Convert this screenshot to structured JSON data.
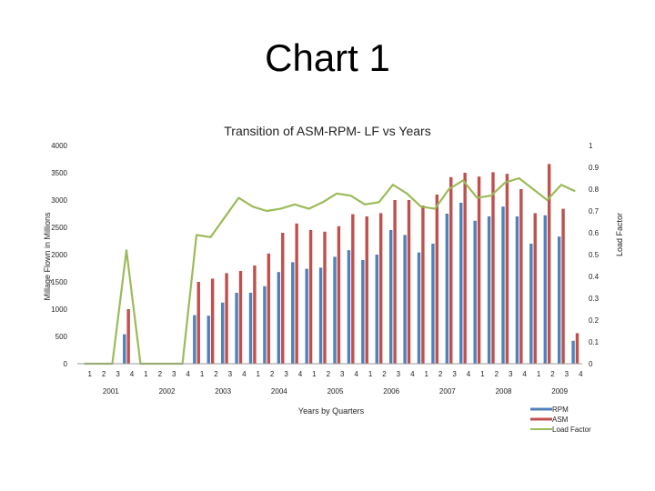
{
  "slide": {
    "title": "Chart 1"
  },
  "chart_data": {
    "type": "bar+line",
    "title": "Transition of ASM-RPM- LF vs Years",
    "xlabel": "Years by Quarters",
    "ylabel": "Millage Flown in Millions",
    "y2label": "Load Factor",
    "ylim": [
      0,
      4000
    ],
    "y2lim": [
      0,
      1
    ],
    "yticks": [
      "0",
      "500",
      "1000",
      "1500",
      "2000",
      "2500",
      "3000",
      "3500",
      "4000"
    ],
    "y2ticks": [
      "0",
      "0.1",
      "0.2",
      "0.3",
      "0.4",
      "0.5",
      "0.6",
      "0.7",
      "0.8",
      "0.9",
      "1"
    ],
    "quarters": [
      "1",
      "2",
      "3",
      "4",
      "1",
      "2",
      "3",
      "4",
      "1",
      "2",
      "3",
      "4",
      "1",
      "2",
      "3",
      "4",
      "1",
      "2",
      "3",
      "4",
      "1",
      "2",
      "3",
      "4",
      "1",
      "2",
      "3",
      "4",
      "1",
      "2",
      "3",
      "4",
      "1",
      "2",
      "3",
      "4"
    ],
    "years": [
      "2001",
      "2002",
      "2003",
      "2004",
      "2005",
      "2006",
      "2007",
      "2008",
      "2009"
    ],
    "series": [
      {
        "name": "RPM",
        "color": "#4f81bd",
        "values": [
          0,
          0,
          0,
          540,
          0,
          0,
          0,
          0,
          890,
          880,
          1120,
          1300,
          1300,
          1420,
          1680,
          1860,
          1740,
          1760,
          1960,
          2080,
          1900,
          2000,
          2450,
          2360,
          2040,
          2200,
          2750,
          2950,
          2620,
          2700,
          2880,
          2700,
          2200,
          2720,
          2330,
          420
        ]
      },
      {
        "name": "ASM",
        "color": "#c0504d",
        "values": [
          0,
          0,
          0,
          1000,
          0,
          0,
          0,
          0,
          1500,
          1560,
          1660,
          1700,
          1800,
          2020,
          2400,
          2570,
          2450,
          2420,
          2520,
          2740,
          2700,
          2760,
          3000,
          3000,
          2900,
          3100,
          3420,
          3500,
          3430,
          3510,
          3480,
          3200,
          2760,
          3660,
          2840,
          560
        ]
      },
      {
        "name": "Load Factor",
        "color": "#9bbb59",
        "values": [
          0,
          0,
          0,
          0.52,
          0,
          0,
          0,
          0,
          0.59,
          0.58,
          0.67,
          0.76,
          0.72,
          0.7,
          0.71,
          0.73,
          0.71,
          0.74,
          0.78,
          0.77,
          0.73,
          0.74,
          0.82,
          0.78,
          0.72,
          0.71,
          0.8,
          0.84,
          0.76,
          0.77,
          0.83,
          0.85,
          0.8,
          0.75,
          0.82,
          0.79
        ]
      }
    ],
    "legend": "bottom-right"
  }
}
